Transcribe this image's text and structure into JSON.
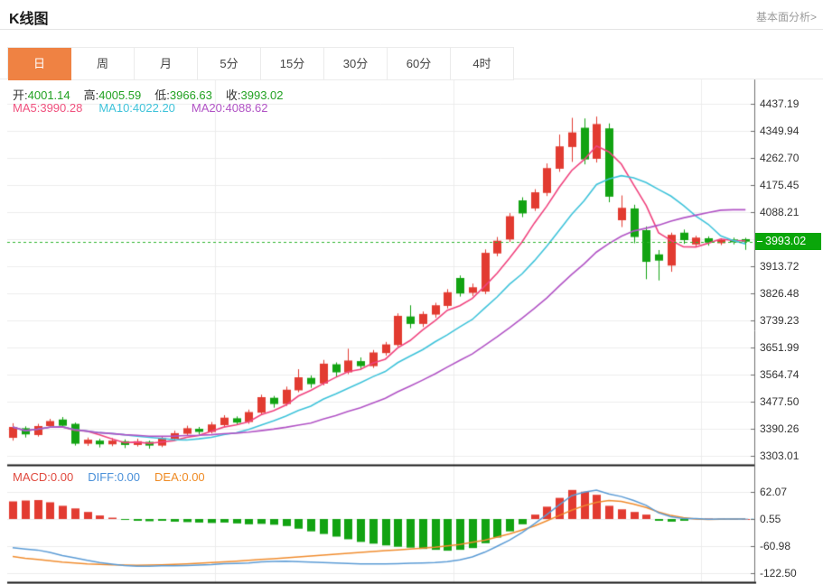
{
  "header": {
    "title": "K线图",
    "link": "基本面分析>"
  },
  "tabs": {
    "active_index": 0,
    "active_color": "#ef8243",
    "items": [
      "日",
      "周",
      "月",
      "5分",
      "15分",
      "30分",
      "60分",
      "4时"
    ]
  },
  "legend": {
    "ohlc": [
      {
        "label": "开:",
        "value": "4001.14"
      },
      {
        "label": "高:",
        "value": "4005.59"
      },
      {
        "label": "低:",
        "value": "3966.63"
      },
      {
        "label": "收:",
        "value": "3993.02"
      }
    ],
    "ma": [
      {
        "label": "MA5:",
        "value": "3990.28",
        "color": "#f0517e"
      },
      {
        "label": "MA10:",
        "value": "4022.20",
        "color": "#3fc3da"
      },
      {
        "label": "MA20:",
        "value": "4088.62",
        "color": "#b153c5"
      }
    ],
    "macd": [
      {
        "label": "MACD:",
        "value": "0.00",
        "color": "#e04a3f"
      },
      {
        "label": "DIFF:",
        "value": "0.00",
        "color": "#4a90d9"
      },
      {
        "label": "DEA:",
        "value": "0.00",
        "color": "#ef8b24"
      }
    ]
  },
  "chart_data": {
    "type": "candlestick",
    "title": "K线图 日K (daily K-line) with MACD sub-chart",
    "legend_position": "top-left overlay",
    "grid": true,
    "main": {
      "up_color": "#e23b31",
      "down_color": "#12a312",
      "axis_top_value": 4437.19,
      "axis_step": 87.247,
      "y_ticks": [
        4437.19,
        4349.94,
        4262.7,
        4175.45,
        4088.21,
        3913.72,
        3826.48,
        3739.23,
        3651.99,
        3564.74,
        3477.5,
        3390.26,
        3303.01
      ],
      "price_line_value": 3993.02,
      "price_tag": "3993.02",
      "price_tag_color": "#0aa60a",
      "candles_ohlc": [
        [
          3361,
          3408,
          3352,
          3396
        ],
        [
          3392,
          3398,
          3362,
          3372
        ],
        [
          3370,
          3406,
          3365,
          3399
        ],
        [
          3399,
          3422,
          3394,
          3415
        ],
        [
          3420,
          3428,
          3395,
          3400
        ],
        [
          3406,
          3410,
          3336,
          3342
        ],
        [
          3342,
          3362,
          3335,
          3355
        ],
        [
          3352,
          3358,
          3330,
          3340
        ],
        [
          3340,
          3360,
          3334,
          3352
        ],
        [
          3350,
          3356,
          3328,
          3338
        ],
        [
          3338,
          3358,
          3333,
          3350
        ],
        [
          3348,
          3352,
          3326,
          3336
        ],
        [
          3336,
          3366,
          3331,
          3360
        ],
        [
          3358,
          3384,
          3352,
          3376
        ],
        [
          3374,
          3400,
          3368,
          3392
        ],
        [
          3390,
          3396,
          3372,
          3380
        ],
        [
          3380,
          3412,
          3375,
          3404
        ],
        [
          3402,
          3434,
          3396,
          3426
        ],
        [
          3424,
          3430,
          3402,
          3410
        ],
        [
          3412,
          3452,
          3406,
          3444
        ],
        [
          3442,
          3500,
          3436,
          3492
        ],
        [
          3490,
          3496,
          3458,
          3470
        ],
        [
          3470,
          3526,
          3464,
          3516
        ],
        [
          3514,
          3582,
          3508,
          3556
        ],
        [
          3554,
          3562,
          3522,
          3534
        ],
        [
          3536,
          3612,
          3530,
          3600
        ],
        [
          3598,
          3604,
          3558,
          3572
        ],
        [
          3572,
          3648,
          3566,
          3610
        ],
        [
          3608,
          3620,
          3580,
          3592
        ],
        [
          3592,
          3644,
          3586,
          3636
        ],
        [
          3634,
          3670,
          3626,
          3662
        ],
        [
          3660,
          3762,
          3654,
          3754
        ],
        [
          3752,
          3788,
          3714,
          3728
        ],
        [
          3728,
          3768,
          3718,
          3760
        ],
        [
          3758,
          3796,
          3748,
          3788
        ],
        [
          3786,
          3840,
          3778,
          3830
        ],
        [
          3876,
          3884,
          3816,
          3826
        ],
        [
          3828,
          3858,
          3818,
          3846
        ],
        [
          3832,
          3968,
          3824,
          3957
        ],
        [
          3955,
          4008,
          3946,
          3996
        ],
        [
          4000,
          4085,
          3992,
          4075
        ],
        [
          4126,
          4136,
          4072,
          4084
        ],
        [
          4100,
          4162,
          4092,
          4152
        ],
        [
          4150,
          4245,
          4140,
          4230
        ],
        [
          4228,
          4338,
          4218,
          4300
        ],
        [
          4298,
          4392,
          4250,
          4345
        ],
        [
          4360,
          4390,
          4242,
          4258
        ],
        [
          4260,
          4396,
          4248,
          4372
        ],
        [
          4358,
          4374,
          4120,
          4138
        ],
        [
          4062,
          4142,
          4040,
          4102
        ],
        [
          4100,
          4112,
          3988,
          4008
        ],
        [
          4030,
          4042,
          3872,
          3928
        ],
        [
          3952,
          3966,
          3868,
          3932
        ],
        [
          3916,
          4022,
          3896,
          4015
        ],
        [
          4022,
          4032,
          3986,
          3998
        ],
        [
          3984,
          4012,
          3976,
          4006
        ],
        [
          4004,
          4010,
          3980,
          3990
        ],
        [
          3988,
          4004,
          3982,
          3999
        ],
        [
          4000,
          4006,
          3984,
          3991
        ],
        [
          4001.14,
          4005.59,
          3966.63,
          3993.02
        ]
      ],
      "ma_lines": [
        {
          "name": "MA5",
          "period": 5,
          "color": "#f0437e",
          "last": 3990.28
        },
        {
          "name": "MA10",
          "period": 10,
          "color": "#3fc3da",
          "last": 4022.2
        },
        {
          "name": "MA20",
          "period": 20,
          "color": "#b153c5",
          "last": 4088.62
        }
      ]
    },
    "macd": {
      "y_ticks": [
        62.07,
        0.55,
        -60.98,
        -122.5
      ],
      "zero_value": 0.55,
      "hist_up_color": "#e23b31",
      "hist_down_color": "#12a312",
      "hist": [
        40,
        42,
        43,
        38,
        30,
        24,
        16,
        8,
        3,
        -2,
        -4,
        -5,
        -4,
        -6,
        -7,
        -8,
        -9,
        -8,
        -10,
        -12,
        -11,
        -13,
        -16,
        -22,
        -28,
        -34,
        -40,
        -46,
        -52,
        -56,
        -60,
        -63,
        -65,
        -68,
        -70,
        -72,
        -70,
        -66,
        -55,
        -42,
        -28,
        -12,
        10,
        28,
        48,
        66,
        62,
        55,
        30,
        22,
        16,
        10,
        -4,
        -6,
        -4,
        2,
        1,
        0.5,
        0.2,
        0
      ],
      "diff": {
        "color": "#5b9bd5",
        "values": [
          -65,
          -68,
          -70.5,
          -76,
          -83,
          -88,
          -94,
          -99,
          -102.5,
          -105.5,
          -107,
          -107,
          -106,
          -106,
          -105.5,
          -104.5,
          -103.5,
          -101.5,
          -101,
          -100,
          -97.5,
          -96.5,
          -96,
          -97,
          -98,
          -99,
          -100,
          -101,
          -102,
          -102,
          -102,
          -101.5,
          -100.5,
          -100,
          -99,
          -97,
          -93,
          -86,
          -75.5,
          -62,
          -48,
          -31,
          -11,
          10,
          32,
          53,
          61,
          65.5,
          57,
          51,
          42,
          31,
          14,
          5,
          1,
          1,
          -0.5,
          -0.25,
          0.1,
          0
        ]
      },
      "dea": {
        "color": "#f08c2e",
        "values": [
          -85,
          -89,
          -92,
          -95,
          -98,
          -100,
          -102,
          -103,
          -104,
          -104.5,
          -105,
          -104.5,
          -104,
          -103,
          -102,
          -100.5,
          -99,
          -97.5,
          -96,
          -94,
          -92,
          -90,
          -88,
          -86,
          -84,
          -82,
          -80,
          -78,
          -76,
          -74,
          -72,
          -70,
          -68,
          -66,
          -64,
          -61,
          -58,
          -53,
          -48,
          -41,
          -34,
          -25,
          -16,
          -4,
          8,
          20,
          30,
          38,
          42,
          40,
          34,
          26,
          16,
          8,
          3,
          0,
          -1,
          -0.5,
          0,
          0
        ]
      }
    }
  }
}
